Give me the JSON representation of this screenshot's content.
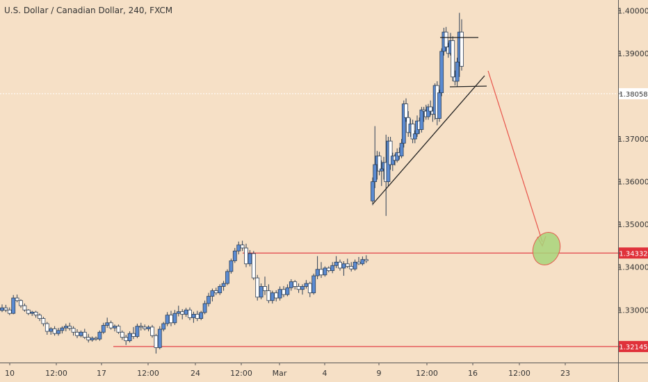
{
  "chart_data": {
    "type": "candlestick",
    "title": "U.S. Dollar / Canadian Dollar, 240, FXCM",
    "ylim": [
      1.3177,
      1.4025
    ],
    "x_ticks": [
      "10",
      "12:00",
      "17",
      "12:00",
      "24",
      "12:00",
      "Mar",
      "4",
      "9",
      "12:00",
      "16",
      "12:00",
      "23"
    ],
    "y_ticks": [
      "1.40000",
      "1.39000",
      "1.38058",
      "1.37000",
      "1.36000",
      "1.35000",
      "1.34332",
      "1.34000",
      "1.33000",
      "1.32145"
    ],
    "current_price": 1.38058,
    "current_price_label": "1.38058",
    "levels": [
      {
        "price": 1.34332,
        "label": "1.34332"
      },
      {
        "price": 1.32145,
        "label": "1.32145"
      }
    ],
    "candles_segment_1": [
      [
        1.3299,
        1.3313,
        1.3295,
        1.3305
      ],
      [
        1.3305,
        1.3312,
        1.3295,
        1.33
      ],
      [
        1.33,
        1.3306,
        1.3288,
        1.3292
      ],
      [
        1.3292,
        1.3335,
        1.329,
        1.3328
      ],
      [
        1.3328,
        1.3336,
        1.3318,
        1.3322
      ],
      [
        1.3322,
        1.3325,
        1.3305,
        1.331
      ],
      [
        1.331,
        1.3315,
        1.3296,
        1.33
      ],
      [
        1.33,
        1.3302,
        1.3288,
        1.3292
      ],
      [
        1.3292,
        1.3298,
        1.3286,
        1.3295
      ],
      [
        1.3295,
        1.3298,
        1.3282,
        1.3288
      ],
      [
        1.3288,
        1.3292,
        1.3274,
        1.328
      ],
      [
        1.328,
        1.3284,
        1.3262,
        1.3268
      ],
      [
        1.3268,
        1.3272,
        1.3242,
        1.325
      ],
      [
        1.325,
        1.326,
        1.3242,
        1.3256
      ],
      [
        1.3256,
        1.3262,
        1.324,
        1.3245
      ],
      [
        1.3245,
        1.3258,
        1.324,
        1.3252
      ],
      [
        1.3252,
        1.3262,
        1.3245,
        1.3258
      ],
      [
        1.3258,
        1.3268,
        1.325,
        1.3262
      ],
      [
        1.3262,
        1.327,
        1.3252,
        1.3257
      ],
      [
        1.3257,
        1.3262,
        1.324,
        1.3248
      ],
      [
        1.3248,
        1.3255,
        1.3234,
        1.324
      ],
      [
        1.324,
        1.3252,
        1.3236,
        1.3248
      ],
      [
        1.3248,
        1.3256,
        1.3232,
        1.3236
      ],
      [
        1.3236,
        1.3244,
        1.3224,
        1.323
      ],
      [
        1.323,
        1.3238,
        1.3226,
        1.3234
      ],
      [
        1.3234,
        1.3238,
        1.3228,
        1.3232
      ],
      [
        1.3232,
        1.3252,
        1.3228,
        1.3248
      ],
      [
        1.3248,
        1.327,
        1.3244,
        1.3264
      ],
      [
        1.3264,
        1.3282,
        1.3258,
        1.327
      ],
      [
        1.327,
        1.3275,
        1.3254,
        1.3258
      ],
      [
        1.3258,
        1.3266,
        1.325,
        1.3262
      ],
      [
        1.3262,
        1.3266,
        1.3244,
        1.3248
      ],
      [
        1.3248,
        1.3252,
        1.323,
        1.3236
      ],
      [
        1.3236,
        1.3242,
        1.3218,
        1.3228
      ],
      [
        1.3228,
        1.325,
        1.3224,
        1.3245
      ],
      [
        1.3245,
        1.326,
        1.3232,
        1.3238
      ],
      [
        1.3238,
        1.3268,
        1.3234,
        1.3262
      ],
      [
        1.3262,
        1.327,
        1.3252,
        1.326
      ],
      [
        1.326,
        1.3266,
        1.3252,
        1.3256
      ],
      [
        1.3256,
        1.3264,
        1.325,
        1.326
      ],
      [
        1.326,
        1.3265,
        1.3235,
        1.324
      ],
      [
        1.324,
        1.3244,
        1.3198,
        1.3212
      ],
      [
        1.3212,
        1.3262,
        1.3208,
        1.3255
      ],
      [
        1.3255,
        1.3272,
        1.325,
        1.3268
      ],
      [
        1.3268,
        1.3295,
        1.3262,
        1.3288
      ],
      [
        1.3288,
        1.3298,
        1.3262,
        1.327
      ],
      [
        1.327,
        1.33,
        1.3265,
        1.3292
      ],
      [
        1.3292,
        1.331,
        1.3285,
        1.3296
      ],
      [
        1.3296,
        1.3302,
        1.3278,
        1.329
      ],
      [
        1.329,
        1.3305,
        1.3284,
        1.33
      ],
      [
        1.33,
        1.3306,
        1.3276,
        1.3282
      ],
      [
        1.3282,
        1.3296,
        1.327,
        1.329
      ],
      [
        1.329,
        1.3298,
        1.3274,
        1.328
      ],
      [
        1.328,
        1.3298,
        1.3276,
        1.3294
      ],
      [
        1.3294,
        1.3322,
        1.329,
        1.3315
      ],
      [
        1.3315,
        1.334,
        1.3308,
        1.3332
      ],
      [
        1.3332,
        1.335,
        1.332,
        1.3345
      ],
      [
        1.3345,
        1.3352,
        1.3335,
        1.334
      ],
      [
        1.334,
        1.336,
        1.3335,
        1.3355
      ],
      [
        1.3355,
        1.3368,
        1.3345,
        1.3362
      ],
      [
        1.3362,
        1.3395,
        1.3358,
        1.339
      ],
      [
        1.339,
        1.342,
        1.3385,
        1.3415
      ],
      [
        1.3415,
        1.3445,
        1.341,
        1.3438
      ],
      [
        1.3438,
        1.346,
        1.343,
        1.3452
      ],
      [
        1.3452,
        1.3462,
        1.3438,
        1.3445
      ],
      [
        1.3445,
        1.3455,
        1.34,
        1.3408
      ],
      [
        1.3408,
        1.344,
        1.3402,
        1.3432
      ],
      [
        1.3432,
        1.3438,
        1.337,
        1.3375
      ],
      [
        1.3375,
        1.3382,
        1.3322,
        1.333
      ],
      [
        1.333,
        1.3362,
        1.3325,
        1.3355
      ],
      [
        1.3355,
        1.3378,
        1.3335,
        1.3345
      ],
      [
        1.3345,
        1.336,
        1.3316,
        1.3322
      ],
      [
        1.3322,
        1.3345,
        1.3315,
        1.334
      ],
      [
        1.334,
        1.3346,
        1.332,
        1.3328
      ],
      [
        1.3328,
        1.3355,
        1.3322,
        1.3348
      ],
      [
        1.3348,
        1.3356,
        1.333,
        1.3336
      ],
      [
        1.3336,
        1.336,
        1.3332,
        1.3352
      ],
      [
        1.3352,
        1.3372,
        1.3345,
        1.3366
      ],
      [
        1.3366,
        1.337,
        1.3348,
        1.3355
      ],
      [
        1.3355,
        1.3362,
        1.334,
        1.3348
      ],
      [
        1.3348,
        1.336,
        1.3336,
        1.3355
      ],
      [
        1.3355,
        1.337,
        1.335,
        1.3362
      ],
      [
        1.3362,
        1.3366,
        1.333,
        1.334
      ],
      [
        1.334,
        1.3385,
        1.3336,
        1.338
      ],
      [
        1.338,
        1.3426,
        1.3372,
        1.3395
      ],
      [
        1.3395,
        1.3412,
        1.3375,
        1.3382
      ],
      [
        1.3382,
        1.3402,
        1.3378,
        1.3398
      ],
      [
        1.3398,
        1.3402,
        1.3388,
        1.3392
      ],
      [
        1.3392,
        1.3412,
        1.3386,
        1.3404
      ],
      [
        1.3404,
        1.3426,
        1.3398,
        1.3412
      ],
      [
        1.3412,
        1.3418,
        1.3392,
        1.3398
      ],
      [
        1.3398,
        1.3414,
        1.338,
        1.3408
      ],
      [
        1.3408,
        1.342,
        1.3398,
        1.3402
      ],
      [
        1.3402,
        1.3412,
        1.339,
        1.3396
      ],
      [
        1.3396,
        1.3418,
        1.3392,
        1.3412
      ],
      [
        1.3412,
        1.3424,
        1.3405,
        1.3408
      ],
      [
        1.3408,
        1.3425,
        1.3404,
        1.3418
      ],
      [
        1.3418,
        1.3428,
        1.341,
        1.3415
      ]
    ],
    "candles_segment_2": [
      [
        1.3555,
        1.361,
        1.3545,
        1.36
      ],
      [
        1.36,
        1.373,
        1.3585,
        1.364
      ],
      [
        1.364,
        1.3672,
        1.3605,
        1.366
      ],
      [
        1.366,
        1.367,
        1.3615,
        1.3625
      ],
      [
        1.3625,
        1.365,
        1.359,
        1.363
      ],
      [
        1.363,
        1.3658,
        1.3605,
        1.3645
      ],
      [
        1.3645,
        1.371,
        1.352,
        1.36
      ],
      [
        1.36,
        1.3705,
        1.359,
        1.3695
      ],
      [
        1.3695,
        1.3705,
        1.3628,
        1.364
      ],
      [
        1.364,
        1.3668,
        1.3625,
        1.366
      ],
      [
        1.366,
        1.3665,
        1.3638,
        1.365
      ],
      [
        1.365,
        1.3678,
        1.3645,
        1.3668
      ],
      [
        1.3668,
        1.368,
        1.3652,
        1.366
      ],
      [
        1.366,
        1.37,
        1.3655,
        1.369
      ],
      [
        1.369,
        1.379,
        1.368,
        1.3782
      ],
      [
        1.3782,
        1.3795,
        1.374,
        1.375
      ],
      [
        1.375,
        1.3765,
        1.3705,
        1.3715
      ],
      [
        1.3715,
        1.3748,
        1.3705,
        1.3735
      ],
      [
        1.3735,
        1.3745,
        1.369,
        1.37
      ],
      [
        1.37,
        1.372,
        1.369,
        1.3712
      ],
      [
        1.3712,
        1.3755,
        1.3705,
        1.3742
      ],
      [
        1.3742,
        1.375,
        1.3712,
        1.3722
      ],
      [
        1.3722,
        1.3775,
        1.3715,
        1.3768
      ],
      [
        1.3768,
        1.3775,
        1.374,
        1.3765
      ],
      [
        1.3765,
        1.378,
        1.3745,
        1.3752
      ],
      [
        1.3752,
        1.3782,
        1.3745,
        1.3775
      ],
      [
        1.3775,
        1.379,
        1.3755,
        1.3765
      ],
      [
        1.3765,
        1.3775,
        1.374,
        1.3758
      ],
      [
        1.3758,
        1.383,
        1.3745,
        1.3825
      ],
      [
        1.3825,
        1.3835,
        1.3732,
        1.3748
      ],
      [
        1.3748,
        1.3815,
        1.374,
        1.3808
      ],
      [
        1.3808,
        1.3912,
        1.38,
        1.3905
      ],
      [
        1.3905,
        1.396,
        1.3895,
        1.395
      ],
      [
        1.395,
        1.3962,
        1.3905,
        1.3915
      ],
      [
        1.3915,
        1.3925,
        1.389,
        1.39
      ],
      [
        1.39,
        1.3948,
        1.3895,
        1.393
      ],
      [
        1.393,
        1.394,
        1.3835,
        1.3845
      ],
      [
        1.3845,
        1.386,
        1.3825,
        1.3835
      ],
      [
        1.3835,
        1.389,
        1.3822,
        1.388
      ],
      [
        1.388,
        1.3995,
        1.3845,
        1.395
      ],
      [
        1.395,
        1.398,
        1.386,
        1.387
      ]
    ]
  },
  "colors": {
    "background": "#f6e0c6",
    "candle_up": "#5b8bd2",
    "candle_down": "#ffffff",
    "candle_outline": "#2c3e55",
    "level_line": "#e0313a",
    "level_badge": "#e0313a",
    "price_badge": "#ffffff",
    "trend_line": "#222222",
    "arrow": "#e8534a",
    "target_fill": "#a8d47a",
    "target_stroke": "#e4584d"
  }
}
